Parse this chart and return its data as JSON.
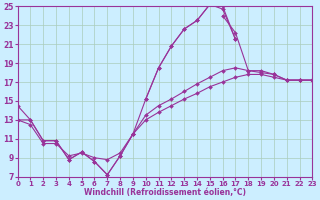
{
  "xlabel": "Windchill (Refroidissement éolien,°C)",
  "bg_color": "#cceeff",
  "grid_color": "#aaccbb",
  "line_color": "#993399",
  "xmin": 0,
  "xmax": 23,
  "ymin": 7,
  "ymax": 25,
  "yticks": [
    7,
    9,
    11,
    13,
    15,
    17,
    19,
    21,
    23,
    25
  ],
  "xticks": [
    0,
    1,
    2,
    3,
    4,
    5,
    6,
    7,
    8,
    9,
    10,
    11,
    12,
    13,
    14,
    15,
    16,
    17,
    18,
    19,
    20,
    21,
    22,
    23
  ],
  "series": [
    [
      14.5,
      13.0,
      10.8,
      10.8,
      8.8,
      9.6,
      8.6,
      7.2,
      9.2,
      11.5,
      15.2,
      18.5,
      20.8,
      22.6,
      23.5,
      25.2,
      25.0,
      21.5,
      null,
      null,
      null,
      null,
      null,
      null
    ],
    [
      null,
      null,
      null,
      null,
      null,
      null,
      null,
      null,
      null,
      null,
      15.2,
      18.5,
      20.8,
      22.6,
      23.5,
      25.2,
      24.7,
      21.5,
      null,
      null,
      null,
      null,
      null,
      null
    ],
    [
      null,
      null,
      null,
      null,
      null,
      null,
      null,
      null,
      null,
      null,
      null,
      null,
      null,
      null,
      null,
      null,
      24.0,
      22.2,
      18.2,
      18.2,
      17.8,
      17.2,
      17.2,
      17.2
    ],
    [
      13.0,
      13.0,
      10.8,
      10.8,
      8.8,
      9.6,
      8.6,
      7.2,
      9.2,
      11.5,
      13.5,
      14.5,
      15.2,
      16.0,
      16.8,
      17.5,
      18.2,
      18.5,
      18.2,
      18.0,
      17.8,
      17.2,
      17.2,
      17.2
    ],
    [
      13.0,
      12.5,
      10.5,
      10.5,
      9.2,
      9.5,
      9.0,
      8.8,
      9.5,
      11.5,
      13.0,
      13.8,
      14.5,
      15.2,
      15.8,
      16.5,
      17.0,
      17.5,
      17.8,
      17.8,
      17.5,
      17.2,
      17.2,
      17.2
    ]
  ]
}
